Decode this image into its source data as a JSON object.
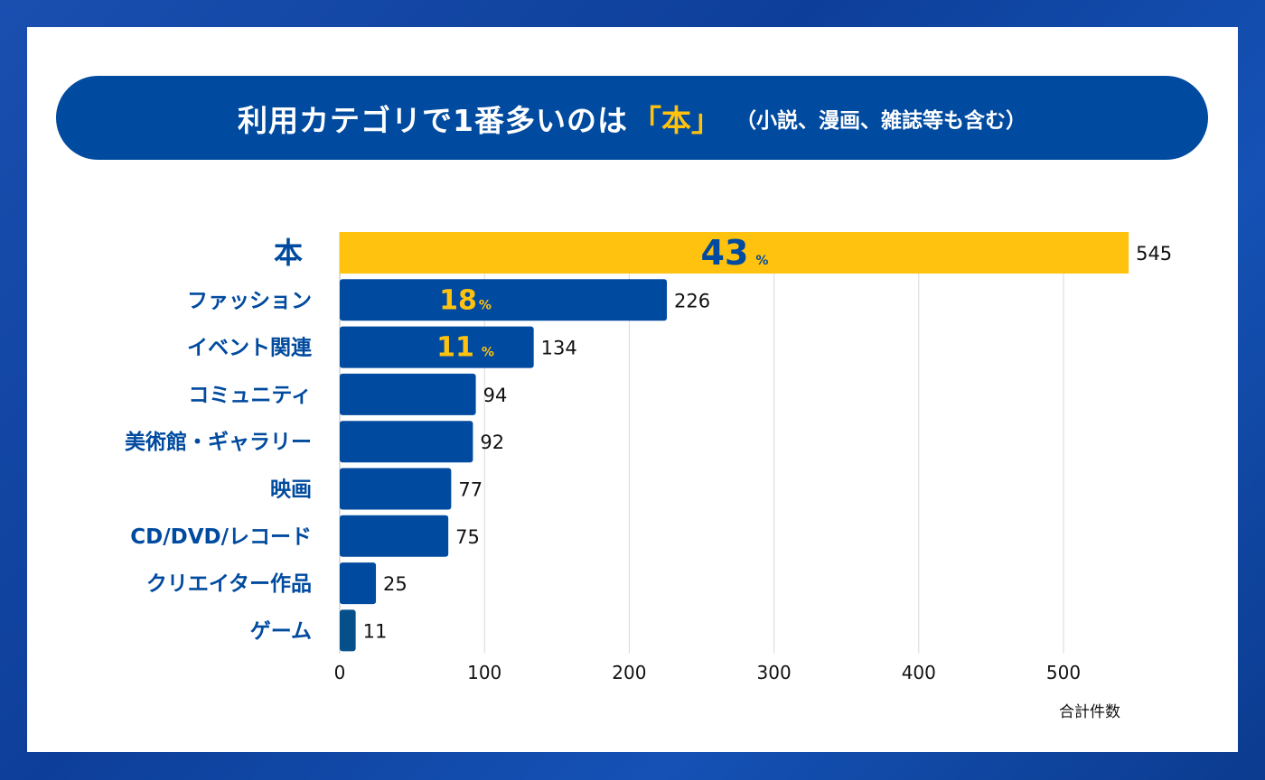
{
  "title": {
    "main": "利用カテゴリで1番多いのは",
    "highlight": "「本」",
    "sub": "（小説、漫画、雑誌等も含む）"
  },
  "chart_data": {
    "type": "bar",
    "orientation": "horizontal",
    "categories": [
      "本",
      "ファッション",
      "イベント関連",
      "コミュニティ",
      "美術館・ギャラリー",
      "映画",
      "CD/DVD/レコード",
      "クリエイター作品",
      "ゲーム"
    ],
    "values": [
      545,
      226,
      134,
      94,
      92,
      77,
      75,
      25,
      11
    ],
    "percent_labels": [
      "43",
      "18",
      "11",
      null,
      null,
      null,
      null,
      null,
      null
    ],
    "percent_sign": "%",
    "value_labels": [
      "545",
      "226",
      "134",
      "94",
      "92",
      "77",
      "75",
      "25",
      "11"
    ],
    "xlabel": "合計件数",
    "xlim": [
      0,
      545
    ],
    "xticks": [
      0,
      100,
      200,
      300,
      400,
      500
    ],
    "xtick_labels": [
      "0",
      "100",
      "200",
      "300",
      "400",
      "500"
    ],
    "grid": "vertical",
    "colors": {
      "highlight": "#ffc20e",
      "bar": "#004a9f",
      "last_bar": "#05508a",
      "label": "#004a9f",
      "percent_on_blue": "#ffc20e",
      "percent_on_yellow": "#004a9f"
    }
  }
}
